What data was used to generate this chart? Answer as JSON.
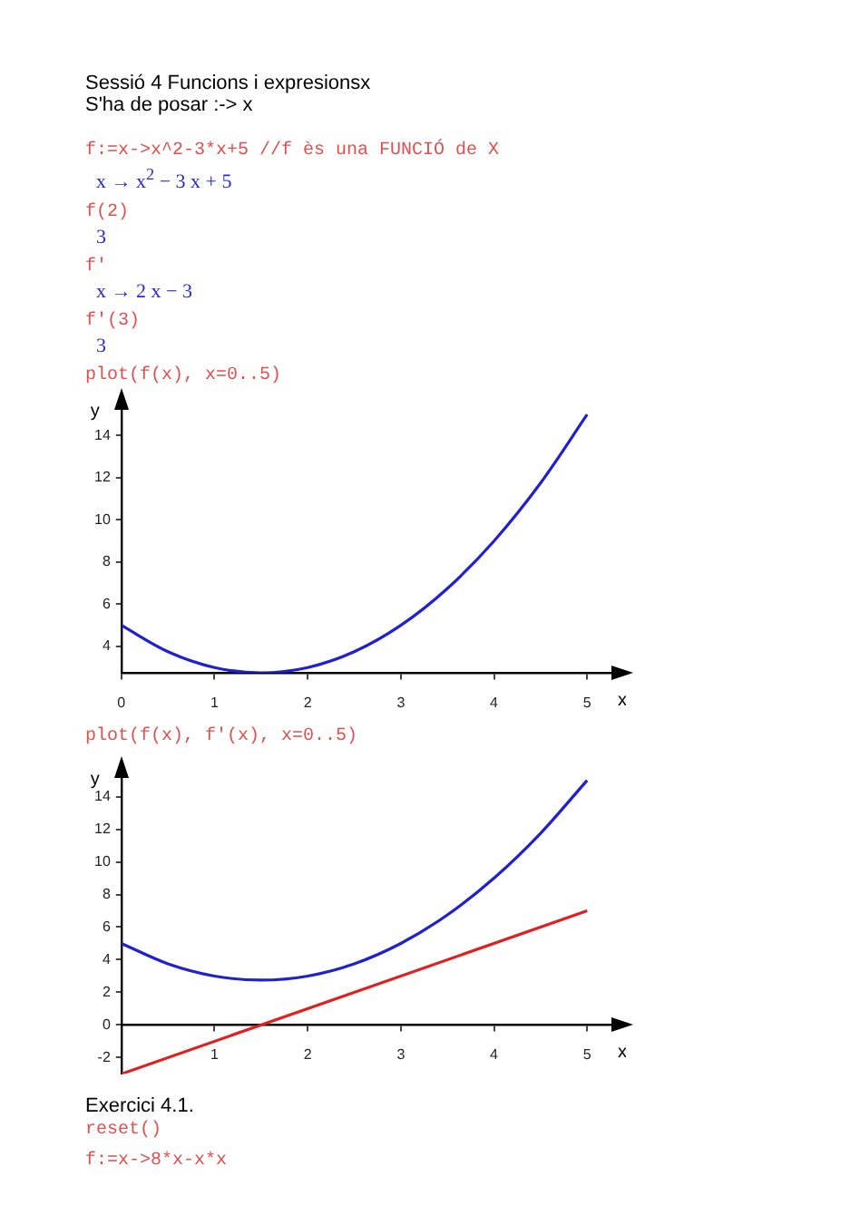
{
  "chart_data": [
    {
      "type": "line",
      "title": "Sessió 4 Funcions i expresionsx",
      "subtitle": "S'ha de posar :-> x",
      "annotations": [
        "f:=x->x^2-3*x+5     //f ès una FUNCIÓ de X",
        "x → x$^{2}$ − 3 x + 5",
        "f(2)",
        "3",
        "f'",
        "x → 2 x − 3",
        "f'(3)",
        "3",
        "plot(f(x), x=0..5)"
      ],
      "xlabel": "x",
      "ylabel": "y",
      "xlim": [
        0,
        5.3
      ],
      "ylim": [
        2.75,
        15.5
      ],
      "xticks": [
        0,
        1,
        2,
        3,
        4,
        5
      ],
      "yticks": [
        4,
        6,
        8,
        10,
        12,
        14
      ],
      "marker": "none",
      "series": [
        {
          "type": "line",
          "color": "#2020d0",
          "x": [
            0,
            0.5,
            1,
            1.5,
            2,
            2.5,
            3,
            3.5,
            4,
            4.5,
            5
          ],
          "values": [
            5,
            3.75,
            3,
            2.75,
            3,
            3.75,
            5,
            6.75,
            9,
            11.75,
            15
          ]
        }
      ]
    },
    {
      "type": "line",
      "annotations": [
        "plot(f(x), f'(x), x=0..5)",
        "Exercici 4.1.",
        "reset()",
        "f:=x->8*x-x*x"
      ],
      "xlabel": "x",
      "ylabel": "y",
      "xlim": [
        0,
        5.3
      ],
      "ylim": [
        -3,
        15.5
      ],
      "xticks": [
        {
          "value": 0,
          "label": null
        },
        1,
        2,
        3,
        4,
        5
      ],
      "yticks": [
        -2,
        0,
        2,
        4,
        6,
        8,
        10,
        12,
        14
      ],
      "marker": "none",
      "series": [
        {
          "type": "line",
          "color": "#2020d0",
          "x": [
            0,
            0.5,
            1,
            1.5,
            2,
            2.5,
            3,
            3.5,
            4,
            4.5,
            5
          ],
          "values": [
            5,
            3.75,
            3,
            2.75,
            3,
            3.75,
            5,
            6.75,
            9,
            11.75,
            15
          ]
        },
        {
          "type": "line",
          "color": "#e02020",
          "x": [
            0,
            5
          ],
          "values": [
            -3,
            7
          ]
        }
      ]
    }
  ]
}
